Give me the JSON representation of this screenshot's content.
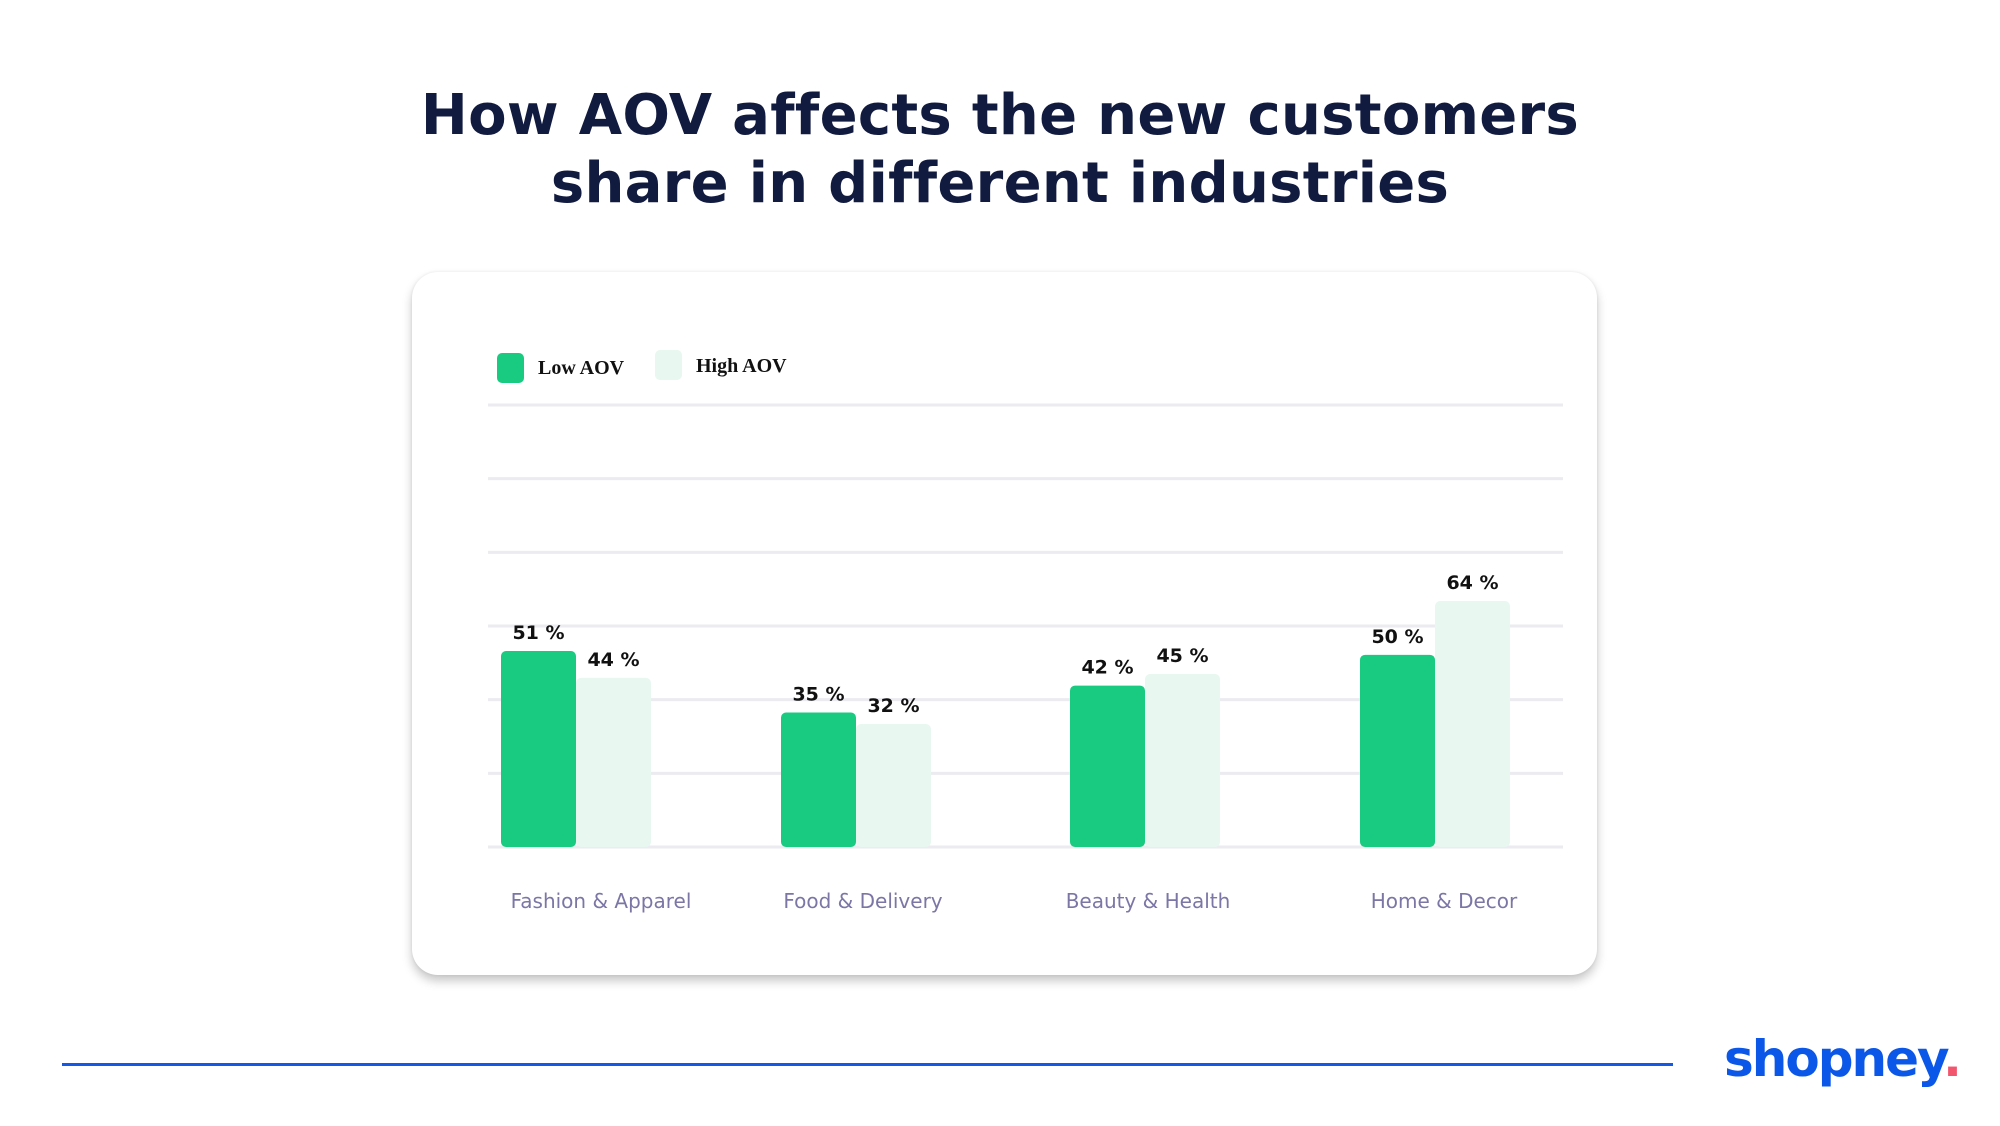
{
  "title": {
    "line1": "How AOV affects the new customers",
    "line2": "share in different industries"
  },
  "chart_data": {
    "type": "bar",
    "title": "How AOV affects the new customers share in different industries",
    "categories": [
      "Fashion & Apparel",
      "Food & Delivery",
      "Beauty & Health",
      "Home & Decor"
    ],
    "series": [
      {
        "name": "Low AOV",
        "values": [
          51,
          35,
          42,
          50
        ],
        "color": "#19cb80"
      },
      {
        "name": "High AOV",
        "values": [
          44,
          32,
          45,
          64
        ],
        "color": "#e8f8f1"
      }
    ],
    "value_suffix": " %",
    "xlabel": "",
    "ylabel": "",
    "ylim": [
      0,
      115
    ],
    "grid": true,
    "legend_position": "top-left"
  },
  "colors": {
    "title": "#111a3f",
    "category_label": "#7b76a6",
    "gridline": "#ebebf0",
    "brand_blue": "#0b57e8",
    "brand_dot": "#f2566e"
  },
  "brand": {
    "name": "shopney",
    "dot": "."
  }
}
